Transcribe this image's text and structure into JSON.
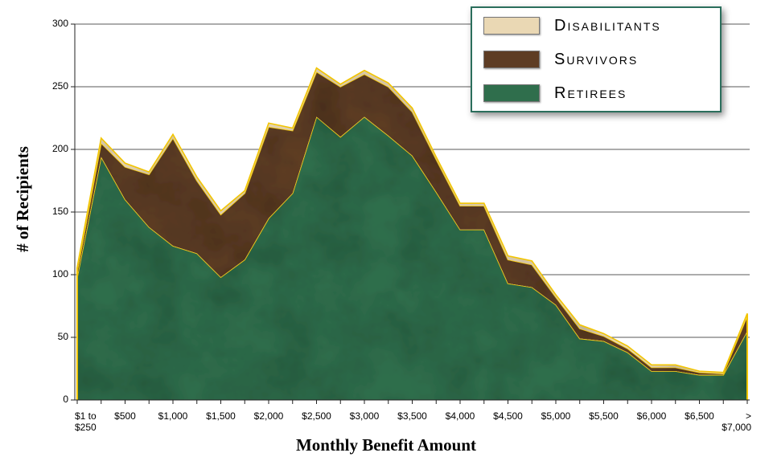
{
  "chart_data": {
    "type": "stacked-area",
    "xlabel": "Monthly Benefit Amount",
    "ylabel": "# of Recipients",
    "categories": [
      "$1 to\n$250",
      null,
      "$500",
      null,
      "$1,000",
      null,
      "$1,500",
      null,
      "$2,000",
      null,
      "$2,500",
      null,
      "$3,000",
      null,
      "$3,500",
      null,
      "$4,000",
      null,
      "$4,500",
      null,
      "$5,000",
      null,
      "$5,500",
      null,
      "$6,000",
      null,
      "$6,500",
      null,
      ">\n$7,000"
    ],
    "series": [
      {
        "name": "Retirees",
        "color": "#2f6e4c",
        "values": [
          98,
          194,
          160,
          138,
          123,
          117,
          98,
          112,
          145,
          165,
          226,
          210,
          226,
          211,
          195,
          166,
          136,
          136,
          93,
          90,
          76,
          49,
          47,
          38,
          23,
          23,
          20,
          20,
          55
        ]
      },
      {
        "name": "Survivors",
        "color": "#5e3d24",
        "values": [
          5,
          11,
          26,
          42,
          86,
          58,
          50,
          53,
          73,
          50,
          36,
          40,
          34,
          39,
          35,
          26,
          19,
          19,
          19,
          18,
          6,
          8,
          4,
          3,
          3,
          3,
          2,
          1,
          12
        ]
      },
      {
        "name": "Disabilitants",
        "color": "#ead8b4",
        "values": [
          3,
          4,
          3,
          2,
          3,
          3,
          3,
          2,
          3,
          2,
          3,
          2,
          3,
          3,
          3,
          2,
          2,
          2,
          3,
          3,
          2,
          3,
          2,
          2,
          2,
          2,
          1,
          1,
          2
        ]
      }
    ],
    "outline_color": "#f2c500",
    "ylim": [
      0,
      300
    ],
    "yticks": [
      0,
      50,
      100,
      150,
      200,
      250,
      300
    ],
    "grid": true,
    "legend": "upper right"
  }
}
